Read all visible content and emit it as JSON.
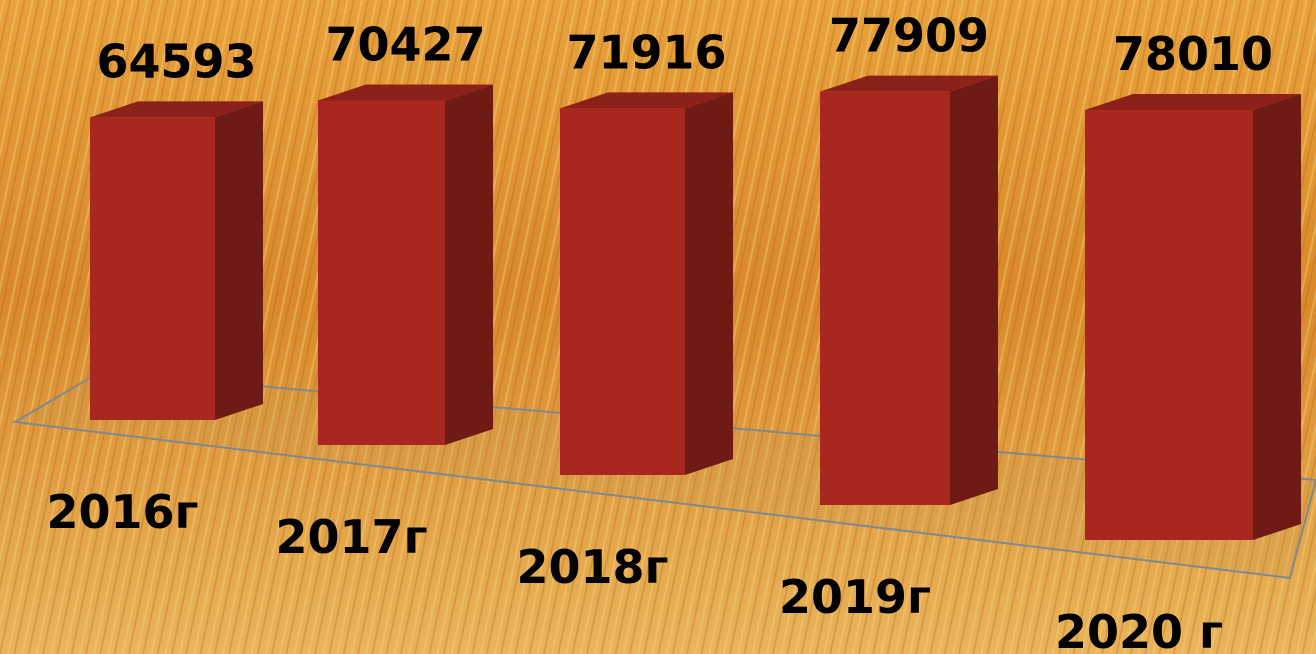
{
  "chart_data": {
    "type": "bar",
    "categories": [
      "2016г",
      "2017г",
      "2018г",
      "2019г",
      "2020 г"
    ],
    "values": [
      64593,
      70427,
      71916,
      77909,
      78010
    ],
    "color": "#a8281f"
  }
}
